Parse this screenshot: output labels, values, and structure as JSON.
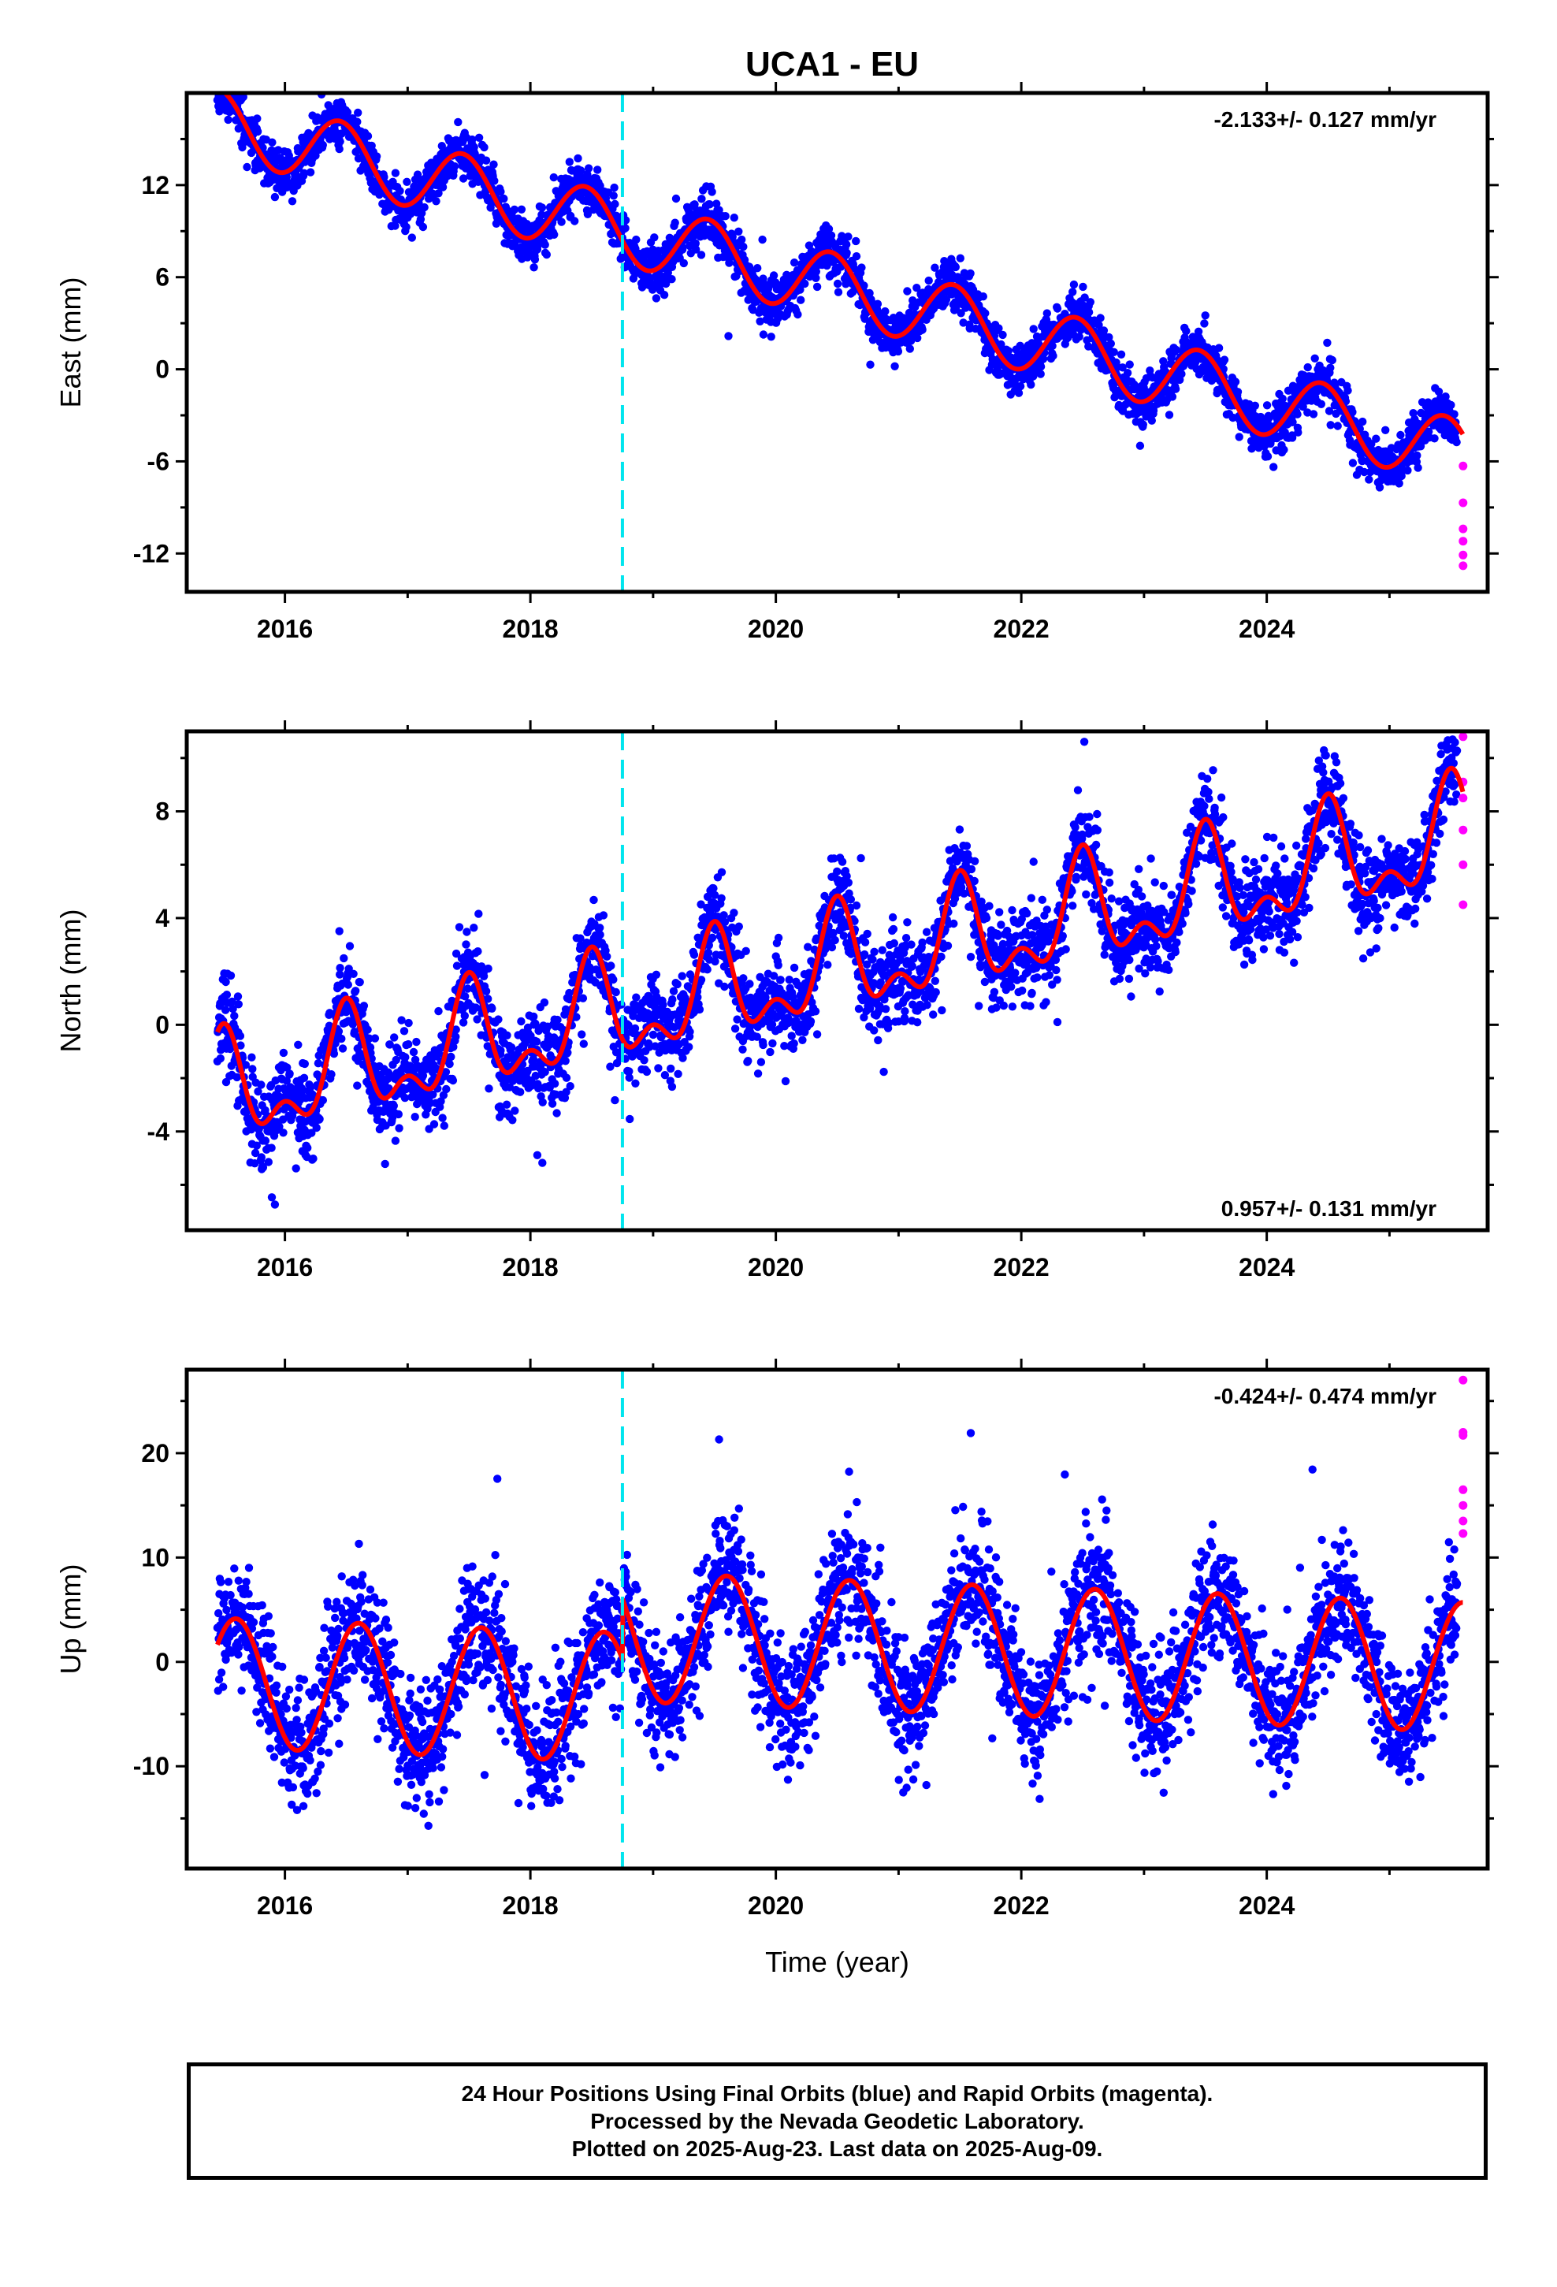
{
  "chart_data": [
    {
      "type": "scatter",
      "title": "UCA1 - EU",
      "ylabel": "East (mm)",
      "xlabel": "",
      "rate_label": "-2.133+/- 0.127 mm/yr",
      "rate_position": "top-right",
      "xlim": [
        2015.2,
        2025.8
      ],
      "ylim": [
        -14.5,
        18
      ],
      "x_ticks": [
        2016,
        2018,
        2020,
        2022,
        2024
      ],
      "y_ticks": [
        -12,
        -6,
        0,
        6,
        12
      ],
      "event_line_x": 2018.75,
      "model": {
        "intercept": 16.1,
        "t0": 2015.45,
        "rate": -2.133,
        "annual_amp": 2.2,
        "annual_peak": 0.45,
        "semiannual_amp": 0.0,
        "semiannual_peak": 0.0,
        "offset_x": 2018.75,
        "offset": 0.0
      },
      "noise_sd": 0.8,
      "seed": 11,
      "rapid_points": {
        "x": [
          2025.6,
          2025.6,
          2025.6,
          2025.6,
          2025.6,
          2025.6
        ],
        "y": [
          -6.3,
          -8.7,
          -10.4,
          -11.2,
          -12.1,
          -12.8
        ]
      },
      "grid": false,
      "series": [
        {
          "name": "Final Orbits",
          "color": "#0000ff"
        },
        {
          "name": "Rapid Orbits",
          "color": "#ff00ff"
        },
        {
          "name": "",
          "color": "#ff0000"
        }
      ]
    },
    {
      "type": "scatter",
      "title": "",
      "ylabel": "North (mm)",
      "xlabel": "",
      "rate_label": "0.957+/- 0.131 mm/yr",
      "rate_position": "bottom-right",
      "xlim": [
        2015.2,
        2025.8
      ],
      "ylim": [
        -7.7,
        11
      ],
      "x_ticks": [
        2016,
        2018,
        2020,
        2022,
        2024
      ],
      "y_ticks": [
        -4,
        0,
        4,
        8
      ],
      "event_line_x": 2018.75,
      "model": {
        "intercept": -2.7,
        "t0": 2015.45,
        "rate": 0.957,
        "annual_amp": 1.7,
        "annual_peak": 0.5,
        "semiannual_amp": 1.0,
        "semiannual_peak": 0.0,
        "offset_x": 2018.75,
        "offset": 0.0
      },
      "noise_sd": 0.85,
      "seed": 23,
      "rapid_points": {
        "x": [
          2025.6,
          2025.6,
          2025.6,
          2025.6,
          2025.6,
          2025.6
        ],
        "y": [
          10.8,
          9.1,
          8.5,
          7.3,
          6.0,
          4.5
        ]
      },
      "grid": false,
      "series": [
        {
          "name": "Final Orbits",
          "color": "#0000ff"
        },
        {
          "name": "Rapid Orbits",
          "color": "#ff00ff"
        },
        {
          "name": "",
          "color": "#ff0000"
        }
      ]
    },
    {
      "type": "scatter",
      "title": "",
      "ylabel": "Up (mm)",
      "xlabel": "Time (year)",
      "rate_label": "-0.424+/- 0.474 mm/yr",
      "rate_position": "top-right",
      "xlim": [
        2015.2,
        2025.8
      ],
      "ylim": [
        -19.8,
        28
      ],
      "x_ticks": [
        2016,
        2018,
        2020,
        2022,
        2024
      ],
      "y_ticks": [
        -10,
        0,
        10,
        20
      ],
      "event_line_x": 2018.75,
      "model": {
        "intercept": -2.0,
        "t0": 2015.45,
        "rate": -0.424,
        "annual_amp": 6.2,
        "annual_peak": 0.6,
        "semiannual_amp": 0.0,
        "semiannual_peak": 0.0,
        "offset_x": 2018.75,
        "offset": 5.8
      },
      "noise_sd": 3.0,
      "seed": 37,
      "rapid_points": {
        "x": [
          2025.6,
          2025.6,
          2025.6,
          2025.6,
          2025.6,
          2025.6,
          2025.6
        ],
        "y": [
          27.0,
          22.0,
          21.7,
          16.5,
          15.0,
          13.5,
          12.3
        ]
      },
      "grid": false,
      "series": [
        {
          "name": "Final Orbits",
          "color": "#0000ff"
        },
        {
          "name": "Rapid Orbits",
          "color": "#ff00ff"
        },
        {
          "name": "",
          "color": "#ff0000"
        }
      ]
    }
  ],
  "caption": {
    "line1": "24 Hour Positions Using Final Orbits (blue) and Rapid Orbits (magenta).",
    "line2": "Processed by the Nevada Geodetic Laboratory.",
    "line3": "Plotted on 2025-Aug-23. Last data on 2025-Aug-09."
  },
  "colors": {
    "final": "#0000ff",
    "rapid": "#ff00ff",
    "model": "#ff0000",
    "event": "#00e5ee"
  }
}
